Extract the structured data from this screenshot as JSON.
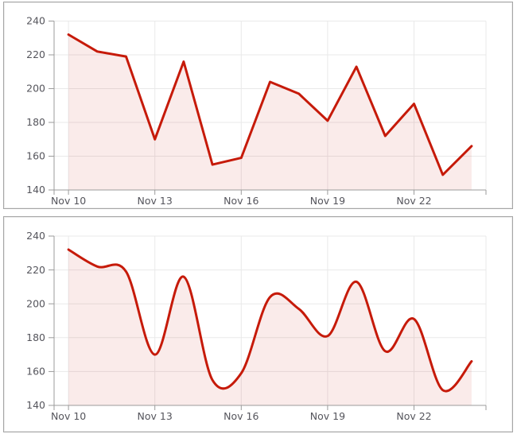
{
  "colors": {
    "line": "#c61a09",
    "fill": "rgba(198, 26, 9, 0.085)",
    "grid": "#e9e9e9",
    "axis": "#9b9b9b",
    "tick_label": "#55555c",
    "panel_border": "#a5a5a5",
    "background": "#ffffff"
  },
  "chart_data": [
    {
      "type": "area",
      "line_shape": "linear",
      "title": "",
      "xlabel": "",
      "ylabel": "",
      "x_categories": [
        "Nov 10",
        "Nov 11",
        "Nov 12",
        "Nov 13",
        "Nov 14",
        "Nov 15",
        "Nov 16",
        "Nov 17",
        "Nov 18",
        "Nov 19",
        "Nov 20",
        "Nov 21",
        "Nov 22",
        "Nov 23",
        "Nov 24"
      ],
      "values": [
        232,
        222,
        219,
        170,
        216,
        155,
        159,
        204,
        197,
        181,
        213,
        172,
        191,
        149,
        166
      ],
      "ylim": [
        140,
        240
      ],
      "yticks": [
        140,
        160,
        180,
        200,
        220,
        240
      ],
      "ytick_labels": [
        "140",
        "160",
        "180",
        "200",
        "220",
        "240"
      ],
      "xtick_every": 3,
      "xtick_labels": [
        "Nov 10",
        "Nov 13",
        "Nov 16",
        "Nov 19",
        "Nov 22"
      ],
      "grid": true,
      "legend": "none"
    },
    {
      "type": "area",
      "line_shape": "spline",
      "title": "",
      "xlabel": "",
      "ylabel": "",
      "x_categories": [
        "Nov 10",
        "Nov 11",
        "Nov 12",
        "Nov 13",
        "Nov 14",
        "Nov 15",
        "Nov 16",
        "Nov 17",
        "Nov 18",
        "Nov 19",
        "Nov 20",
        "Nov 21",
        "Nov 22",
        "Nov 23",
        "Nov 24"
      ],
      "values": [
        232,
        222,
        219,
        170,
        216,
        155,
        159,
        204,
        197,
        181,
        213,
        172,
        191,
        149,
        166
      ],
      "ylim": [
        140,
        240
      ],
      "yticks": [
        140,
        160,
        180,
        200,
        220,
        240
      ],
      "ytick_labels": [
        "140",
        "160",
        "180",
        "200",
        "220",
        "240"
      ],
      "xtick_every": 3,
      "xtick_labels": [
        "Nov 10",
        "Nov 13",
        "Nov 16",
        "Nov 19",
        "Nov 22"
      ],
      "grid": true,
      "legend": "none"
    }
  ]
}
